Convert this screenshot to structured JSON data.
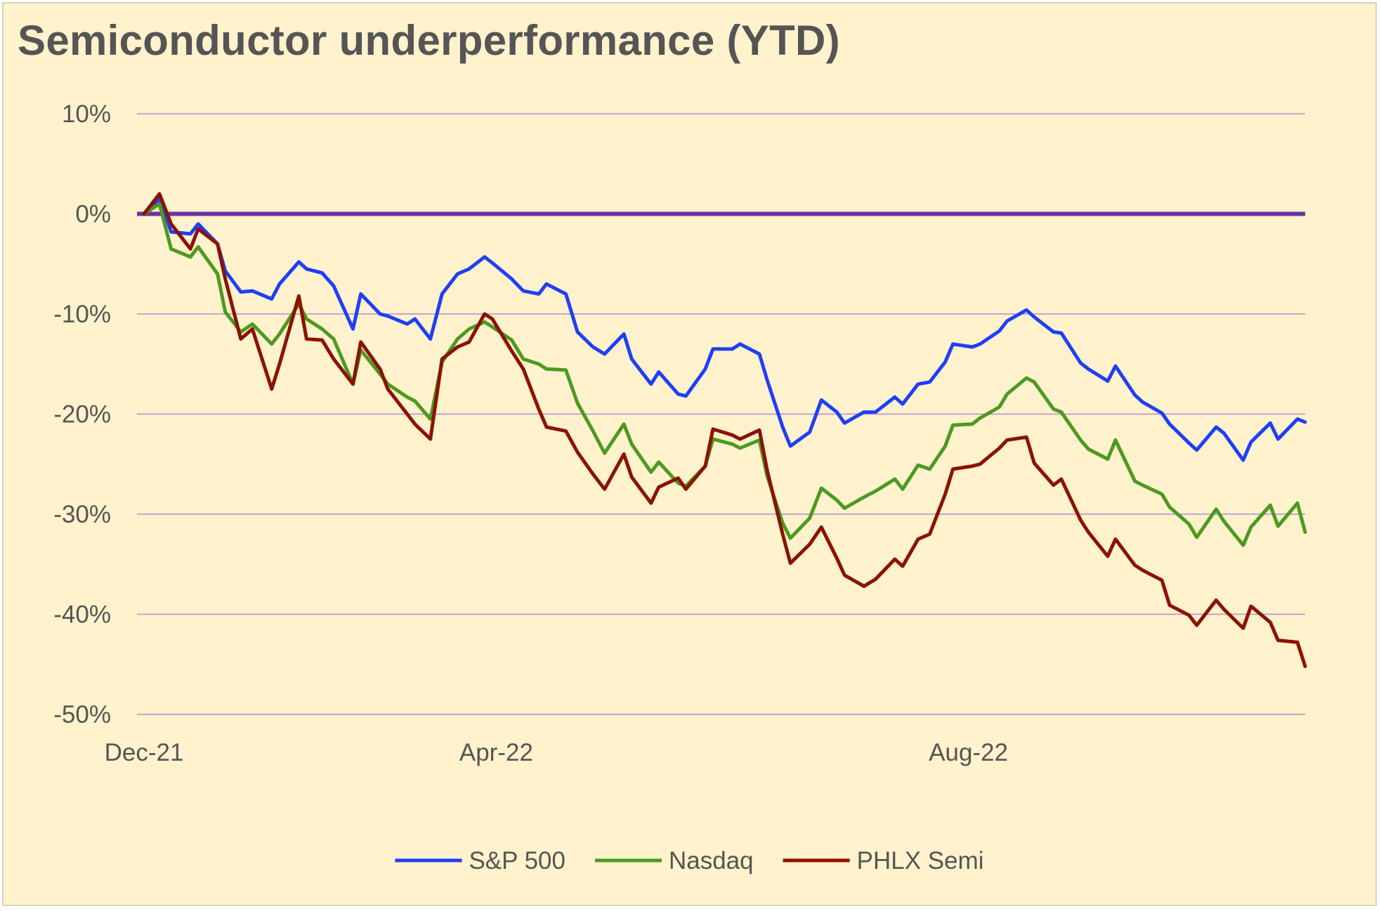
{
  "chart_data": {
    "type": "line",
    "title": "Semiconductor underperformance (YTD)",
    "xlabel": "",
    "ylabel": "",
    "ylim": [
      -50,
      10
    ],
    "y_ticks": [
      10,
      0,
      -10,
      -20,
      -30,
      -40,
      -50
    ],
    "y_tick_format": "%",
    "x_ticks": [
      {
        "label": "Dec-21",
        "date": "2021-12-31"
      },
      {
        "label": "Apr-22",
        "date": "2022-04-01"
      },
      {
        "label": "Aug-22",
        "date": "2022-08-01"
      }
    ],
    "grid": true,
    "legend_position": "bottom",
    "zero_line_color": "#7030a0",
    "grid_color": "#b58ad0",
    "series": [
      {
        "name": "S&P 500",
        "color": "#1f3ff5",
        "points": [
          [
            "2021-12-31",
            0
          ],
          [
            "2022-01-04",
            1.5
          ],
          [
            "2022-01-07",
            -1.8
          ],
          [
            "2022-01-12",
            -2
          ],
          [
            "2022-01-14",
            -1
          ],
          [
            "2022-01-19",
            -3
          ],
          [
            "2022-01-21",
            -5.7
          ],
          [
            "2022-01-25",
            -7.8
          ],
          [
            "2022-01-28",
            -7.7
          ],
          [
            "2022-02-02",
            -8.5
          ],
          [
            "2022-02-04",
            -7
          ],
          [
            "2022-02-09",
            -4.8
          ],
          [
            "2022-02-11",
            -5.5
          ],
          [
            "2022-02-15",
            -5.9
          ],
          [
            "2022-02-18",
            -7.2
          ],
          [
            "2022-02-23",
            -11.5
          ],
          [
            "2022-02-25",
            -8
          ],
          [
            "2022-03-02",
            -10
          ],
          [
            "2022-03-04",
            -10.2
          ],
          [
            "2022-03-09",
            -11
          ],
          [
            "2022-03-11",
            -10.5
          ],
          [
            "2022-03-15",
            -12.5
          ],
          [
            "2022-03-18",
            -8
          ],
          [
            "2022-03-22",
            -6
          ],
          [
            "2022-03-25",
            -5.5
          ],
          [
            "2022-03-29",
            -4.3
          ],
          [
            "2022-03-31",
            -4.9
          ],
          [
            "2022-04-05",
            -6.5
          ],
          [
            "2022-04-08",
            -7.7
          ],
          [
            "2022-04-12",
            -8
          ],
          [
            "2022-04-14",
            -7
          ],
          [
            "2022-04-19",
            -8
          ],
          [
            "2022-04-22",
            -11.8
          ],
          [
            "2022-04-26",
            -13.3
          ],
          [
            "2022-04-29",
            -14
          ],
          [
            "2022-05-04",
            -12
          ],
          [
            "2022-05-06",
            -14.5
          ],
          [
            "2022-05-11",
            -17
          ],
          [
            "2022-05-13",
            -15.8
          ],
          [
            "2022-05-18",
            -18
          ],
          [
            "2022-05-20",
            -18.2
          ],
          [
            "2022-05-25",
            -15.5
          ],
          [
            "2022-05-27",
            -13.5
          ],
          [
            "2022-06-01",
            -13.5
          ],
          [
            "2022-06-03",
            -13
          ],
          [
            "2022-06-08",
            -14
          ],
          [
            "2022-06-10",
            -16.6
          ],
          [
            "2022-06-14",
            -21.3
          ],
          [
            "2022-06-16",
            -23.2
          ],
          [
            "2022-06-21",
            -21.8
          ],
          [
            "2022-06-24",
            -18.6
          ],
          [
            "2022-06-28",
            -19.8
          ],
          [
            "2022-06-30",
            -20.9
          ],
          [
            "2022-07-05",
            -19.8
          ],
          [
            "2022-07-08",
            -19.8
          ],
          [
            "2022-07-13",
            -18.3
          ],
          [
            "2022-07-15",
            -19
          ],
          [
            "2022-07-19",
            -17
          ],
          [
            "2022-07-22",
            -16.8
          ],
          [
            "2022-07-26",
            -14.8
          ],
          [
            "2022-07-28",
            -13
          ],
          [
            "2022-08-02",
            -13.3
          ],
          [
            "2022-08-04",
            -13
          ],
          [
            "2022-08-09",
            -11.7
          ],
          [
            "2022-08-11",
            -10.7
          ],
          [
            "2022-08-16",
            -9.6
          ],
          [
            "2022-08-18",
            -10.3
          ],
          [
            "2022-08-23",
            -11.8
          ],
          [
            "2022-08-25",
            -11.9
          ],
          [
            "2022-08-30",
            -14.9
          ],
          [
            "2022-09-01",
            -15.5
          ],
          [
            "2022-09-06",
            -16.7
          ],
          [
            "2022-09-08",
            -15.2
          ],
          [
            "2022-09-13",
            -18.1
          ],
          [
            "2022-09-15",
            -18.8
          ],
          [
            "2022-09-20",
            -19.9
          ],
          [
            "2022-09-22",
            -21
          ],
          [
            "2022-09-27",
            -22.9
          ],
          [
            "2022-09-29",
            -23.6
          ],
          [
            "2022-10-04",
            -21.3
          ],
          [
            "2022-10-06",
            -21.9
          ],
          [
            "2022-10-11",
            -24.6
          ],
          [
            "2022-10-13",
            -22.8
          ],
          [
            "2022-10-18",
            -20.9
          ],
          [
            "2022-10-20",
            -22.5
          ],
          [
            "2022-10-25",
            -20.5
          ],
          [
            "2022-10-27",
            -20.8
          ]
        ]
      },
      {
        "name": "Nasdaq",
        "color": "#4c9a1f",
        "points": [
          [
            "2021-12-31",
            0
          ],
          [
            "2022-01-04",
            1
          ],
          [
            "2022-01-07",
            -3.5
          ],
          [
            "2022-01-12",
            -4.3
          ],
          [
            "2022-01-14",
            -3.3
          ],
          [
            "2022-01-19",
            -6
          ],
          [
            "2022-01-21",
            -9.8
          ],
          [
            "2022-01-25",
            -11.8
          ],
          [
            "2022-01-28",
            -11
          ],
          [
            "2022-02-02",
            -13
          ],
          [
            "2022-02-04",
            -12
          ],
          [
            "2022-02-09",
            -9
          ],
          [
            "2022-02-11",
            -10.5
          ],
          [
            "2022-02-15",
            -11.5
          ],
          [
            "2022-02-18",
            -12.5
          ],
          [
            "2022-02-23",
            -17
          ],
          [
            "2022-02-25",
            -13.6
          ],
          [
            "2022-03-02",
            -16
          ],
          [
            "2022-03-04",
            -17
          ],
          [
            "2022-03-09",
            -18.3
          ],
          [
            "2022-03-11",
            -18.7
          ],
          [
            "2022-03-15",
            -20.5
          ],
          [
            "2022-03-18",
            -14.8
          ],
          [
            "2022-03-22",
            -12.5
          ],
          [
            "2022-03-25",
            -11.5
          ],
          [
            "2022-03-29",
            -10.8
          ],
          [
            "2022-03-31",
            -11.3
          ],
          [
            "2022-04-05",
            -12.6
          ],
          [
            "2022-04-08",
            -14.5
          ],
          [
            "2022-04-12",
            -15
          ],
          [
            "2022-04-14",
            -15.5
          ],
          [
            "2022-04-19",
            -15.6
          ],
          [
            "2022-04-22",
            -18.9
          ],
          [
            "2022-04-26",
            -21.7
          ],
          [
            "2022-04-29",
            -23.9
          ],
          [
            "2022-05-04",
            -21
          ],
          [
            "2022-05-06",
            -23
          ],
          [
            "2022-05-11",
            -25.8
          ],
          [
            "2022-05-13",
            -24.8
          ],
          [
            "2022-05-18",
            -26.9
          ],
          [
            "2022-05-20",
            -27.2
          ],
          [
            "2022-05-25",
            -25.2
          ],
          [
            "2022-05-27",
            -22.5
          ],
          [
            "2022-06-01",
            -23
          ],
          [
            "2022-06-03",
            -23.4
          ],
          [
            "2022-06-08",
            -22.6
          ],
          [
            "2022-06-10",
            -26.2
          ],
          [
            "2022-06-14",
            -30.9
          ],
          [
            "2022-06-16",
            -32.4
          ],
          [
            "2022-06-21",
            -30.4
          ],
          [
            "2022-06-24",
            -27.4
          ],
          [
            "2022-06-28",
            -28.6
          ],
          [
            "2022-06-30",
            -29.4
          ],
          [
            "2022-07-05",
            -28.3
          ],
          [
            "2022-07-08",
            -27.7
          ],
          [
            "2022-07-13",
            -26.5
          ],
          [
            "2022-07-15",
            -27.5
          ],
          [
            "2022-07-19",
            -25.1
          ],
          [
            "2022-07-22",
            -25.5
          ],
          [
            "2022-07-26",
            -23.2
          ],
          [
            "2022-07-28",
            -21.1
          ],
          [
            "2022-08-02",
            -21
          ],
          [
            "2022-08-04",
            -20.4
          ],
          [
            "2022-08-09",
            -19.3
          ],
          [
            "2022-08-11",
            -18
          ],
          [
            "2022-08-16",
            -16.4
          ],
          [
            "2022-08-18",
            -16.8
          ],
          [
            "2022-08-23",
            -19.5
          ],
          [
            "2022-08-25",
            -19.8
          ],
          [
            "2022-08-30",
            -22.6
          ],
          [
            "2022-09-01",
            -23.5
          ],
          [
            "2022-09-06",
            -24.5
          ],
          [
            "2022-09-08",
            -22.6
          ],
          [
            "2022-09-13",
            -26.7
          ],
          [
            "2022-09-15",
            -27.1
          ],
          [
            "2022-09-20",
            -28
          ],
          [
            "2022-09-22",
            -29.3
          ],
          [
            "2022-09-27",
            -31
          ],
          [
            "2022-09-29",
            -32.3
          ],
          [
            "2022-10-04",
            -29.5
          ],
          [
            "2022-10-06",
            -30.7
          ],
          [
            "2022-10-11",
            -33.1
          ],
          [
            "2022-10-13",
            -31.3
          ],
          [
            "2022-10-18",
            -29.1
          ],
          [
            "2022-10-20",
            -31.2
          ],
          [
            "2022-10-25",
            -28.9
          ],
          [
            "2022-10-27",
            -31.8
          ]
        ]
      },
      {
        "name": "PHLX Semi",
        "color": "#8b1200",
        "points": [
          [
            "2021-12-31",
            0
          ],
          [
            "2022-01-04",
            2
          ],
          [
            "2022-01-07",
            -1
          ],
          [
            "2022-01-12",
            -3.5
          ],
          [
            "2022-01-14",
            -1.5
          ],
          [
            "2022-01-19",
            -3
          ],
          [
            "2022-01-21",
            -6.5
          ],
          [
            "2022-01-25",
            -12.5
          ],
          [
            "2022-01-28",
            -11.5
          ],
          [
            "2022-02-02",
            -17.5
          ],
          [
            "2022-02-04",
            -15
          ],
          [
            "2022-02-09",
            -8.2
          ],
          [
            "2022-02-11",
            -12.5
          ],
          [
            "2022-02-15",
            -12.6
          ],
          [
            "2022-02-18",
            -14.5
          ],
          [
            "2022-02-23",
            -17
          ],
          [
            "2022-02-25",
            -12.8
          ],
          [
            "2022-03-02",
            -15.5
          ],
          [
            "2022-03-04",
            -17.5
          ],
          [
            "2022-03-09",
            -20
          ],
          [
            "2022-03-11",
            -21
          ],
          [
            "2022-03-15",
            -22.5
          ],
          [
            "2022-03-18",
            -14.5
          ],
          [
            "2022-03-22",
            -13.3
          ],
          [
            "2022-03-25",
            -12.8
          ],
          [
            "2022-03-29",
            -10
          ],
          [
            "2022-03-31",
            -10.5
          ],
          [
            "2022-04-05",
            -13.7
          ],
          [
            "2022-04-08",
            -15.5
          ],
          [
            "2022-04-12",
            -19.5
          ],
          [
            "2022-04-14",
            -21.3
          ],
          [
            "2022-04-19",
            -21.7
          ],
          [
            "2022-04-22",
            -23.8
          ],
          [
            "2022-04-26",
            -26
          ],
          [
            "2022-04-29",
            -27.5
          ],
          [
            "2022-05-04",
            -24
          ],
          [
            "2022-05-06",
            -26.3
          ],
          [
            "2022-05-11",
            -28.9
          ],
          [
            "2022-05-13",
            -27.3
          ],
          [
            "2022-05-18",
            -26.4
          ],
          [
            "2022-05-20",
            -27.5
          ],
          [
            "2022-05-25",
            -25.2
          ],
          [
            "2022-05-27",
            -21.5
          ],
          [
            "2022-06-01",
            -22.1
          ],
          [
            "2022-06-03",
            -22.5
          ],
          [
            "2022-06-08",
            -21.6
          ],
          [
            "2022-06-10",
            -25.6
          ],
          [
            "2022-06-14",
            -32
          ],
          [
            "2022-06-16",
            -34.9
          ],
          [
            "2022-06-21",
            -33
          ],
          [
            "2022-06-24",
            -31.3
          ],
          [
            "2022-06-28",
            -34.4
          ],
          [
            "2022-06-30",
            -36.1
          ],
          [
            "2022-07-05",
            -37.2
          ],
          [
            "2022-07-08",
            -36.5
          ],
          [
            "2022-07-13",
            -34.5
          ],
          [
            "2022-07-15",
            -35.2
          ],
          [
            "2022-07-19",
            -32.5
          ],
          [
            "2022-07-22",
            -32
          ],
          [
            "2022-07-26",
            -28
          ],
          [
            "2022-07-28",
            -25.5
          ],
          [
            "2022-08-02",
            -25.2
          ],
          [
            "2022-08-04",
            -25
          ],
          [
            "2022-08-09",
            -23.4
          ],
          [
            "2022-08-11",
            -22.6
          ],
          [
            "2022-08-16",
            -22.3
          ],
          [
            "2022-08-18",
            -24.9
          ],
          [
            "2022-08-23",
            -27.1
          ],
          [
            "2022-08-25",
            -26.5
          ],
          [
            "2022-08-30",
            -30.6
          ],
          [
            "2022-09-01",
            -31.8
          ],
          [
            "2022-09-06",
            -34.2
          ],
          [
            "2022-09-08",
            -32.5
          ],
          [
            "2022-09-13",
            -35.1
          ],
          [
            "2022-09-15",
            -35.6
          ],
          [
            "2022-09-20",
            -36.6
          ],
          [
            "2022-09-22",
            -39.1
          ],
          [
            "2022-09-27",
            -40.1
          ],
          [
            "2022-09-29",
            -41.1
          ],
          [
            "2022-10-04",
            -38.6
          ],
          [
            "2022-10-06",
            -39.5
          ],
          [
            "2022-10-11",
            -41.4
          ],
          [
            "2022-10-13",
            -39.2
          ],
          [
            "2022-10-18",
            -40.8
          ],
          [
            "2022-10-20",
            -42.6
          ],
          [
            "2022-10-25",
            -42.8
          ],
          [
            "2022-10-27",
            -45.2
          ]
        ]
      }
    ]
  }
}
